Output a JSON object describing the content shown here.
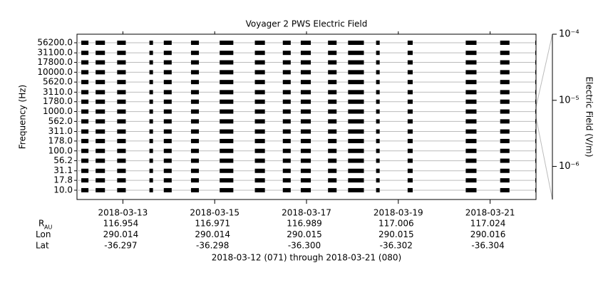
{
  "chart_data": {
    "type": "spectrogram",
    "title": "Voyager 2 PWS Electric Field",
    "y_label": "Frequency (Hz)",
    "colorbar_label": "Electric Field (V/m)",
    "footer": "2018-03-12 (071) through 2018-03-21 (080)",
    "ylog": true,
    "ylim": [
      5.8,
      92700
    ],
    "yticks": [
      {
        "value": 10,
        "label": "10.0"
      },
      {
        "value": 17.8,
        "label": "17.8"
      },
      {
        "value": 31.1,
        "label": "31.1"
      },
      {
        "value": 56.2,
        "label": "56.2"
      },
      {
        "value": 100,
        "label": "100.0"
      },
      {
        "value": 178,
        "label": "178.0"
      },
      {
        "value": 311,
        "label": "311.0"
      },
      {
        "value": 562,
        "label": "562.0"
      },
      {
        "value": 1000,
        "label": "1000.0"
      },
      {
        "value": 1780,
        "label": "1780.0"
      },
      {
        "value": 3110,
        "label": "3110.0"
      },
      {
        "value": 5620,
        "label": "5620.0"
      },
      {
        "value": 10000,
        "label": "10000.0"
      },
      {
        "value": 17800,
        "label": "17800.0"
      },
      {
        "value": 31100,
        "label": "31100.0"
      },
      {
        "value": 56200,
        "label": "56200.0"
      }
    ],
    "xlim": [
      71,
      81
    ],
    "xticks": [
      {
        "value": 72,
        "label": "2018-03-13"
      },
      {
        "value": 74,
        "label": "2018-03-15"
      },
      {
        "value": 76,
        "label": "2018-03-17"
      },
      {
        "value": 78,
        "label": "2018-03-19"
      },
      {
        "value": 80,
        "label": "2018-03-21"
      }
    ],
    "segments": [
      [
        71.094,
        71.25
      ],
      [
        71.406,
        71.609
      ],
      [
        71.875,
        72.063
      ],
      [
        72.578,
        72.656
      ],
      [
        72.891,
        73.063
      ],
      [
        73.484,
        73.656
      ],
      [
        74.109,
        74.406
      ],
      [
        74.875,
        75.094
      ],
      [
        75.484,
        75.656
      ],
      [
        75.875,
        76.094
      ],
      [
        76.469,
        76.656
      ],
      [
        76.906,
        77.25
      ],
      [
        77.516,
        77.594
      ],
      [
        78.203,
        78.313
      ],
      [
        79.469,
        79.703
      ],
      [
        80.219,
        80.422
      ],
      [
        80.984,
        81.0
      ]
    ],
    "color": "#000000",
    "grid": true,
    "clog": true,
    "clim": [
      3.16e-07,
      0.0001
    ],
    "cticks": [
      {
        "value": 0.0001,
        "label": "10⁻⁴"
      },
      {
        "value": 1e-05,
        "label": "10⁻⁵"
      },
      {
        "value": 1e-06,
        "label": "10⁻⁶"
      }
    ],
    "ephemeris": [
      {
        "label": "R",
        "sub": "AU",
        "values": [
          "116.954",
          "116.971",
          "116.989",
          "117.006",
          "117.024"
        ]
      },
      {
        "label": "Lon",
        "values": [
          "290.014",
          "290.014",
          "290.015",
          "290.015",
          "290.016"
        ]
      },
      {
        "label": "Lat",
        "values": [
          "-36.297",
          "-36.298",
          "-36.300",
          "-36.302",
          "-36.304"
        ]
      }
    ]
  }
}
